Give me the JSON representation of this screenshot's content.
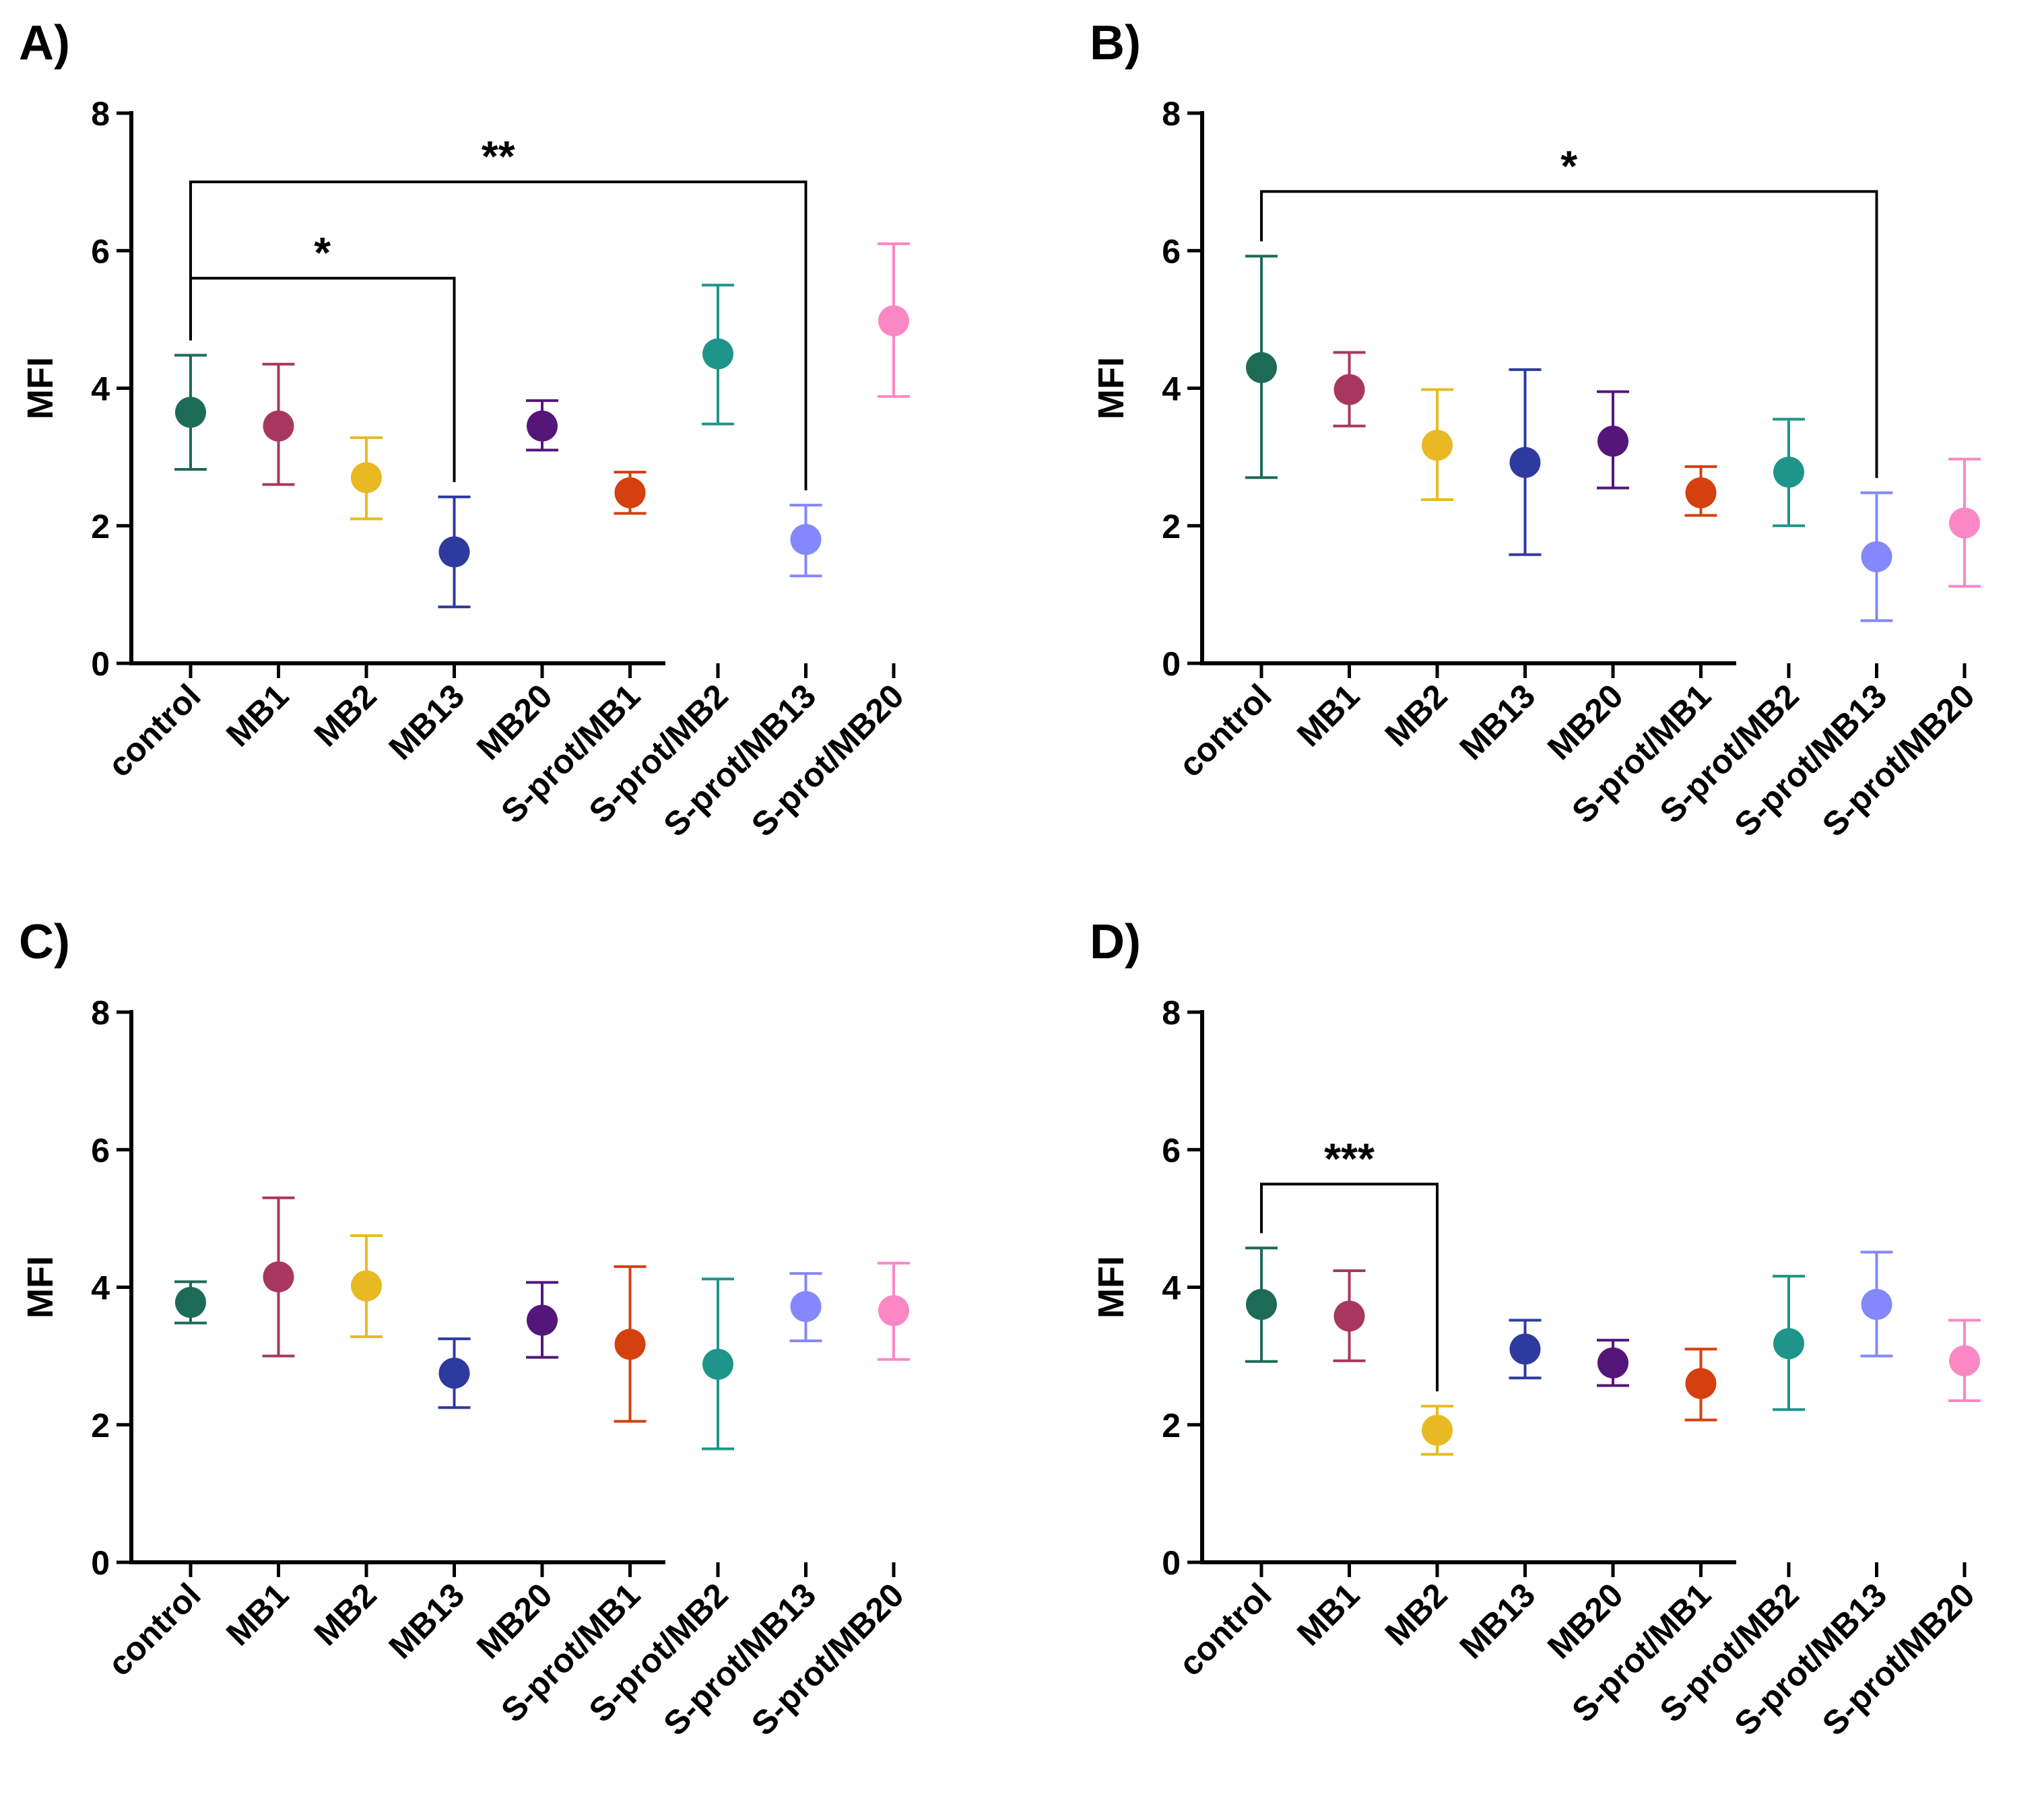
{
  "chart_data": [
    {
      "panel": "A)",
      "type": "scatter",
      "ylabel": "MFI",
      "ylim": [
        0,
        8
      ],
      "yticks": [
        "0",
        "2",
        "4",
        "6",
        "8"
      ],
      "categories": [
        "control",
        "MB1",
        "MB2",
        "MB13",
        "MB20",
        "S-prot/MB1",
        "S-prot/MB2",
        "S-prot/MB13",
        "S-prot/MB20"
      ],
      "means": [
        3.65,
        3.45,
        2.7,
        1.62,
        3.45,
        2.48,
        4.5,
        1.8,
        4.98
      ],
      "err_low": [
        2.82,
        2.6,
        2.1,
        0.82,
        3.1,
        2.18,
        3.48,
        1.27,
        3.88
      ],
      "err_high": [
        4.48,
        4.35,
        3.28,
        2.42,
        3.82,
        2.78,
        5.5,
        2.3,
        6.1
      ],
      "significance": [
        {
          "from": 0,
          "to": 3,
          "label": "*",
          "level": 5.6
        },
        {
          "from": 0,
          "to": 7,
          "label": "**",
          "level": 7.0
        }
      ]
    },
    {
      "panel": "B)",
      "type": "scatter",
      "ylabel": "MFI",
      "ylim": [
        0,
        8
      ],
      "yticks": [
        "0",
        "2",
        "4",
        "6",
        "8"
      ],
      "categories": [
        "control",
        "MB1",
        "MB2",
        "MB13",
        "MB20",
        "S-prot/MB1",
        "S-prot/MB2",
        "S-prot/MB13",
        "S-prot/MB20"
      ],
      "means": [
        4.3,
        3.98,
        3.17,
        2.92,
        3.23,
        2.48,
        2.78,
        1.55,
        2.04
      ],
      "err_low": [
        2.7,
        3.45,
        2.38,
        1.58,
        2.55,
        2.15,
        2.0,
        0.62,
        1.12
      ],
      "err_high": [
        5.92,
        4.52,
        3.98,
        4.27,
        3.95,
        2.86,
        3.55,
        2.48,
        2.97
      ],
      "significance": [
        {
          "from": 0,
          "to": 7,
          "label": "*",
          "level": 6.86
        }
      ]
    },
    {
      "panel": "C)",
      "type": "scatter",
      "ylabel": "MFI",
      "ylim": [
        0,
        8
      ],
      "yticks": [
        "0",
        "2",
        "4",
        "6",
        "8"
      ],
      "categories": [
        "control",
        "MB1",
        "MB2",
        "MB13",
        "MB20",
        "S-prot/MB1",
        "S-prot/MB2",
        "S-prot/MB13",
        "S-prot/MB20"
      ],
      "means": [
        3.78,
        4.15,
        4.02,
        2.75,
        3.52,
        3.17,
        2.88,
        3.72,
        3.66
      ],
      "err_low": [
        3.48,
        3.0,
        3.28,
        2.25,
        2.98,
        2.05,
        1.65,
        3.22,
        2.95
      ],
      "err_high": [
        4.08,
        5.3,
        4.75,
        3.25,
        4.07,
        4.3,
        4.12,
        4.2,
        4.35
      ],
      "significance": []
    },
    {
      "panel": "D)",
      "type": "scatter",
      "ylabel": "MFI",
      "ylim": [
        0,
        8
      ],
      "yticks": [
        "0",
        "2",
        "4",
        "6",
        "8"
      ],
      "categories": [
        "control",
        "MB1",
        "MB2",
        "MB13",
        "MB20",
        "S-prot/MB1",
        "S-prot/MB2",
        "S-prot/MB13",
        "S-prot/MB20"
      ],
      "means": [
        3.75,
        3.58,
        1.92,
        3.1,
        2.9,
        2.6,
        3.18,
        3.75,
        2.93
      ],
      "err_low": [
        2.92,
        2.93,
        1.57,
        2.68,
        2.57,
        2.07,
        2.22,
        3.0,
        2.35
      ],
      "err_high": [
        4.57,
        4.24,
        2.27,
        3.52,
        3.23,
        3.1,
        4.16,
        4.51,
        3.52
      ],
      "significance": [
        {
          "from": 0,
          "to": 2,
          "label": "***",
          "level": 5.5
        }
      ]
    }
  ],
  "colors": [
    "#1d6b57",
    "#a8375f",
    "#e8b923",
    "#2e3a9e",
    "#55167a",
    "#d4400f",
    "#1f948a",
    "#8488fa",
    "#fb88c5"
  ]
}
